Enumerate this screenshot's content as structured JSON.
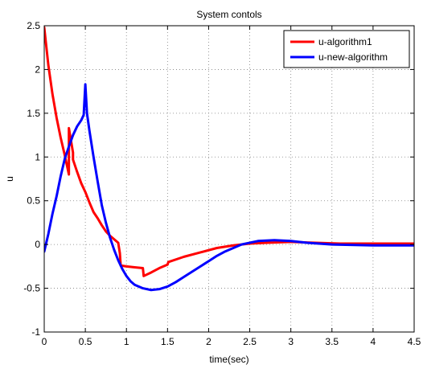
{
  "chart_data": {
    "type": "line",
    "title": "System contols",
    "xlabel": "time(sec)",
    "ylabel": "u",
    "xlim": [
      0,
      4.5
    ],
    "ylim": [
      -1,
      2.5
    ],
    "xticks": [
      0,
      0.5,
      1,
      1.5,
      2,
      2.5,
      3,
      3.5,
      4,
      4.5
    ],
    "xtick_labels": [
      "0",
      "0.5",
      "1",
      "1.5",
      "2",
      "2.5",
      "3",
      "3.5",
      "4",
      "4.5"
    ],
    "yticks": [
      -1,
      -0.5,
      0,
      0.5,
      1,
      1.5,
      2,
      2.5
    ],
    "ytick_labels": [
      "-1",
      "-0.5",
      "0",
      "0.5",
      "1",
      "1.5",
      "2",
      "2.5"
    ],
    "grid": true,
    "legend_position": "top-right",
    "series": [
      {
        "name": "u-algorithm1",
        "color": "#ff0000",
        "x": [
          0,
          0.05,
          0.1,
          0.15,
          0.2,
          0.25,
          0.3,
          0.3,
          0.35,
          0.35,
          0.4,
          0.45,
          0.5,
          0.55,
          0.6,
          0.65,
          0.7,
          0.75,
          0.8,
          0.85,
          0.9,
          0.92,
          0.93,
          1.0,
          1.1,
          1.2,
          1.21,
          1.3,
          1.4,
          1.5,
          1.51,
          1.7,
          1.9,
          2.1,
          2.3,
          2.5,
          2.7,
          3.0,
          3.3,
          3.6,
          4.0,
          4.5
        ],
        "y": [
          2.48,
          2.05,
          1.72,
          1.45,
          1.22,
          1.02,
          0.8,
          1.33,
          1.05,
          0.97,
          0.83,
          0.7,
          0.6,
          0.48,
          0.37,
          0.3,
          0.22,
          0.15,
          0.1,
          0.06,
          0.02,
          -0.1,
          -0.24,
          -0.25,
          -0.26,
          -0.27,
          -0.36,
          -0.32,
          -0.27,
          -0.23,
          -0.2,
          -0.14,
          -0.09,
          -0.04,
          -0.01,
          0.01,
          0.02,
          0.03,
          0.02,
          0.01,
          0.01,
          0.01
        ]
      },
      {
        "name": "u-new-algorithm",
        "color": "#0000ff",
        "x": [
          0,
          0.05,
          0.1,
          0.15,
          0.2,
          0.25,
          0.3,
          0.35,
          0.4,
          0.45,
          0.48,
          0.5,
          0.52,
          0.55,
          0.6,
          0.65,
          0.7,
          0.75,
          0.8,
          0.85,
          0.9,
          0.95,
          1.0,
          1.05,
          1.1,
          1.2,
          1.3,
          1.4,
          1.5,
          1.6,
          1.7,
          1.8,
          1.9,
          2.0,
          2.1,
          2.2,
          2.3,
          2.4,
          2.5,
          2.6,
          2.8,
          3.0,
          3.2,
          3.5,
          4.0,
          4.5
        ],
        "y": [
          -0.08,
          0.12,
          0.35,
          0.55,
          0.78,
          0.98,
          1.12,
          1.25,
          1.35,
          1.42,
          1.48,
          1.83,
          1.5,
          1.3,
          1.0,
          0.72,
          0.45,
          0.25,
          0.08,
          -0.06,
          -0.18,
          -0.28,
          -0.36,
          -0.42,
          -0.46,
          -0.5,
          -0.52,
          -0.51,
          -0.48,
          -0.43,
          -0.37,
          -0.31,
          -0.25,
          -0.19,
          -0.13,
          -0.08,
          -0.04,
          0.0,
          0.02,
          0.04,
          0.05,
          0.04,
          0.02,
          0.0,
          -0.01,
          -0.01
        ]
      }
    ]
  }
}
